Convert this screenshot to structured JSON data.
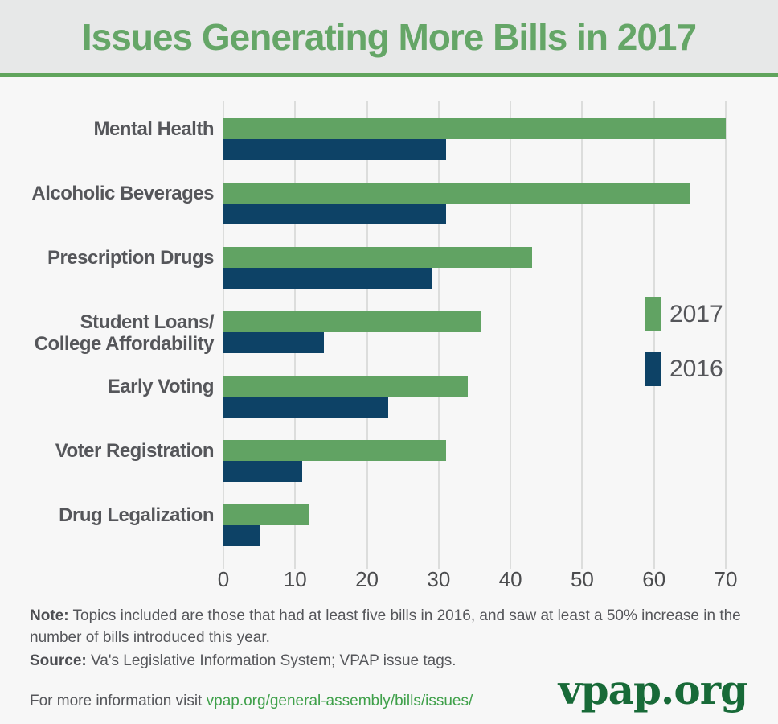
{
  "header": {
    "title": "Issues Generating More Bills in 2017"
  },
  "chart_data": {
    "type": "bar",
    "orientation": "horizontal",
    "title": "Issues Generating More Bills in 2017",
    "categories": [
      {
        "name": "Mental Health",
        "lines": [
          "Mental Health"
        ]
      },
      {
        "name": "Alcoholic Beverages",
        "lines": [
          "Alcoholic Beverages"
        ]
      },
      {
        "name": "Prescription Drugs",
        "lines": [
          "Prescription Drugs"
        ]
      },
      {
        "name": "Student Loans/College Affordability",
        "lines": [
          "Student Loans/",
          "College Affordability"
        ]
      },
      {
        "name": "Early Voting",
        "lines": [
          "Early Voting"
        ]
      },
      {
        "name": "Voter Registration",
        "lines": [
          "Voter Registration"
        ]
      },
      {
        "name": "Drug Legalization",
        "lines": [
          "Drug Legalization"
        ]
      }
    ],
    "series": [
      {
        "name": "2017",
        "color": "#61a363",
        "values": [
          70,
          65,
          43,
          36,
          34,
          31,
          12
        ]
      },
      {
        "name": "2016",
        "color": "#0d4266",
        "values": [
          31,
          31,
          29,
          14,
          23,
          11,
          5
        ]
      }
    ],
    "xlabel": "",
    "ylabel": "",
    "xlim": [
      0,
      70
    ],
    "x_ticks": [
      0,
      10,
      20,
      30,
      40,
      50,
      60,
      70
    ],
    "grid": true,
    "legend_position": "right-middle"
  },
  "colors": {
    "page_background": "#f7f7f7",
    "header_background": "#e7e8e8",
    "header_underline": "#60a45c",
    "title_green": "#65a667",
    "bar_2017_green": "#61a363",
    "bar_2016_navy": "#0d4266",
    "gridline": "#dcdddc",
    "text_gray": "#55565a",
    "link_green": "#3fa04a",
    "logo_green": "#186a38"
  },
  "notes": {
    "note_label": "Note:",
    "note_text": " Topics included are those that had at least five bills in 2016, and saw at least a 50% increase in the number of bills introduced this year.",
    "source_label": "Source:",
    "source_text": " Va's Legislative Information System; VPAP issue tags."
  },
  "footer": {
    "prefix": "For more information visit ",
    "link": "vpap.org/general-assembly/bills/issues/",
    "logo": "vpap.org"
  }
}
